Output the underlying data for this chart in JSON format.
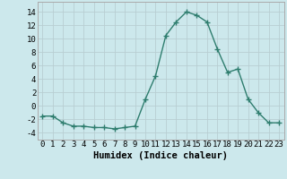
{
  "x": [
    0,
    1,
    2,
    3,
    4,
    5,
    6,
    7,
    8,
    9,
    10,
    11,
    12,
    13,
    14,
    15,
    16,
    17,
    18,
    19,
    20,
    21,
    22,
    23
  ],
  "y": [
    -1.5,
    -1.5,
    -2.5,
    -3.0,
    -3.0,
    -3.2,
    -3.2,
    -3.4,
    -3.2,
    -3.0,
    1.0,
    4.5,
    10.5,
    12.5,
    14.0,
    13.5,
    12.5,
    8.5,
    5.0,
    5.5,
    1.0,
    -1.0,
    -2.5,
    -2.5
  ],
  "line_color": "#2e7d6e",
  "marker": "+",
  "marker_size": 4,
  "marker_lw": 1.0,
  "bg_color": "#cce8ec",
  "grid_color": "#b8ced2",
  "xlabel": "Humidex (Indice chaleur)",
  "xlim": [
    -0.5,
    23.5
  ],
  "ylim": [
    -5,
    15.5
  ],
  "yticks": [
    -4,
    -2,
    0,
    2,
    4,
    6,
    8,
    10,
    12,
    14
  ],
  "xticks": [
    0,
    1,
    2,
    3,
    4,
    5,
    6,
    7,
    8,
    9,
    10,
    11,
    12,
    13,
    14,
    15,
    16,
    17,
    18,
    19,
    20,
    21,
    22,
    23
  ],
  "xlabel_fontsize": 7.5,
  "tick_fontsize": 6.5,
  "line_width": 1.0
}
